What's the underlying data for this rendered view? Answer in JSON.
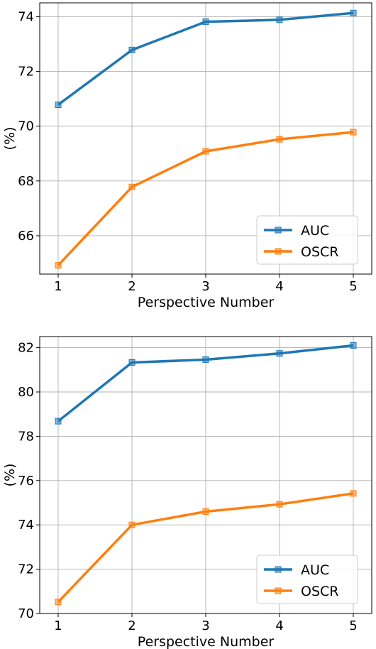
{
  "colors": {
    "auc": "#1f77b4",
    "oscr": "#ff7f0e"
  },
  "chart_data": [
    {
      "type": "line",
      "x": [
        1,
        2,
        3,
        4,
        5
      ],
      "series": [
        {
          "name": "AUC",
          "values": [
            70.78,
            72.78,
            73.81,
            73.88,
            74.13
          ]
        },
        {
          "name": "OSCR",
          "values": [
            64.92,
            67.78,
            69.08,
            69.52,
            69.78
          ]
        }
      ],
      "xticks": [
        "1",
        "2",
        "3",
        "4",
        "5"
      ],
      "yticks": [
        "66",
        "68",
        "70",
        "72",
        "74"
      ],
      "xlabel": "Perspective Number",
      "ylabel": "(%)",
      "xlim": [
        0.75,
        5.25
      ],
      "ylim": [
        64.6,
        74.5
      ],
      "grid": true,
      "legend": "lower-right",
      "marker": "square"
    },
    {
      "type": "line",
      "x": [
        1,
        2,
        3,
        4,
        5
      ],
      "series": [
        {
          "name": "AUC",
          "values": [
            78.68,
            81.33,
            81.46,
            81.74,
            82.1
          ]
        },
        {
          "name": "OSCR",
          "values": [
            70.52,
            74.0,
            74.6,
            74.93,
            75.42
          ]
        }
      ],
      "xticks": [
        "1",
        "2",
        "3",
        "4",
        "5"
      ],
      "yticks": [
        "70",
        "72",
        "74",
        "76",
        "78",
        "80",
        "82"
      ],
      "xlabel": "Perspective Number",
      "ylabel": "(%)",
      "xlim": [
        0.75,
        5.25
      ],
      "ylim": [
        70.0,
        82.5
      ],
      "grid": true,
      "legend": "lower-right",
      "marker": "square"
    }
  ]
}
